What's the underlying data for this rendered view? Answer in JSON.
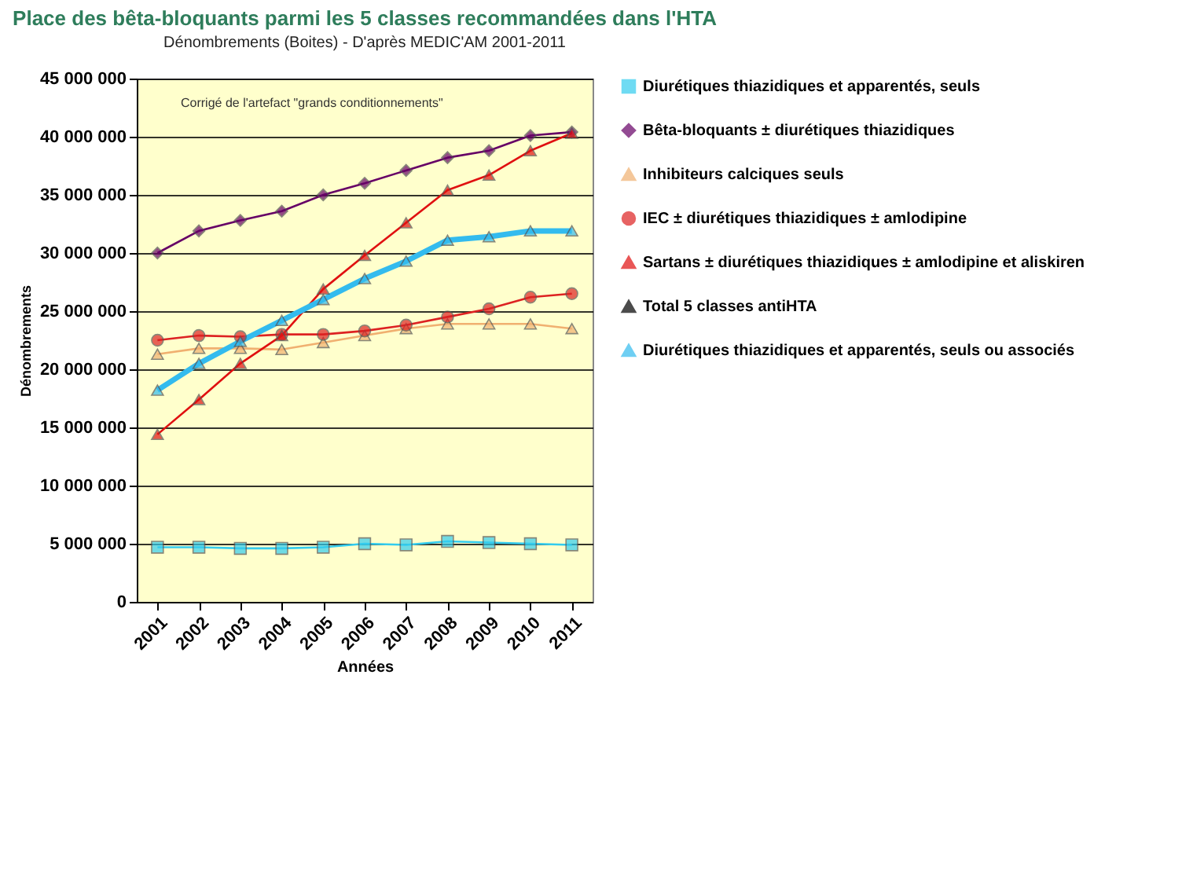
{
  "chart_data": {
    "type": "line",
    "title": "Place des bêta-bloquants parmi les 5 classes recommandées dans l'HTA",
    "subtitle": "Dénombrements (Boites) - D'après MEDIC'AM 2001-2011",
    "xlabel": "Années",
    "ylabel": "Dénombrements",
    "annotations": [
      "Corrigé de l'artefact \"grands conditionnements\""
    ],
    "categories": [
      "2001",
      "2002",
      "2003",
      "2004",
      "2005",
      "2006",
      "2007",
      "2008",
      "2009",
      "2010",
      "2011"
    ],
    "series": [
      {
        "name": "Diurétiques thiazidiques et apparentés, seuls",
        "color": "#33ccee",
        "marker": "square",
        "values": [
          4700000,
          4700000,
          4600000,
          4600000,
          4700000,
          5000000,
          4900000,
          5200000,
          5100000,
          5000000,
          4900000
        ]
      },
      {
        "name": "Bêta-bloquants ± diurétiques thiazidiques",
        "color": "#660066",
        "marker": "diamond",
        "values": [
          30000000,
          31900000,
          32800000,
          33600000,
          35000000,
          36000000,
          37100000,
          38200000,
          38800000,
          40100000,
          40400000
        ]
      },
      {
        "name": "Inhibiteurs calciques seuls",
        "color": "#f0b070",
        "marker": "triangle",
        "values": [
          21300000,
          21800000,
          21800000,
          21700000,
          22300000,
          22900000,
          23500000,
          23900000,
          23900000,
          23900000,
          23500000
        ]
      },
      {
        "name": "IEC ± diurétiques thiazidiques ± amlodipine",
        "color": "#dd2222",
        "marker": "circle",
        "values": [
          22500000,
          22900000,
          22800000,
          23000000,
          23000000,
          23300000,
          23800000,
          24500000,
          25200000,
          26200000,
          26500000
        ]
      },
      {
        "name": "Sartans ± diurétiques thiazidiques ± amlodipine et aliskiren",
        "color": "#e01010",
        "marker": "triangle",
        "values": [
          14400000,
          17400000,
          20500000,
          22900000,
          26900000,
          29800000,
          32600000,
          35400000,
          36700000,
          38800000,
          40300000
        ]
      },
      {
        "name": "Total 5 classes antiHTA",
        "color": "#000000",
        "marker": "triangle",
        "values": [
          null,
          null,
          null,
          null,
          null,
          null,
          null,
          null,
          null,
          null,
          null
        ]
      },
      {
        "name": "Diurétiques thiazidiques et apparentés, seuls ou associés",
        "color": "#33bbee",
        "marker": "triangle",
        "values": [
          18200000,
          20500000,
          22400000,
          24200000,
          26000000,
          27800000,
          29300000,
          31100000,
          31400000,
          31900000,
          31900000
        ]
      }
    ],
    "ylim": [
      0,
      45000000
    ],
    "yticks": [
      0,
      {
        "value": 5000000,
        "label": "5 000 000"
      },
      {
        "value": 10000000,
        "label": "10 000 000"
      },
      {
        "value": 15000000,
        "label": "15 000 000"
      },
      {
        "value": 20000000,
        "label": "20 000 000"
      },
      {
        "value": 25000000,
        "label": "25 000 000"
      },
      {
        "value": 30000000,
        "label": "30 000 000"
      },
      {
        "value": 35000000,
        "label": "35 000 000"
      },
      {
        "value": 40000000,
        "label": "40 000 000"
      },
      {
        "value": 45000000,
        "label": "45 000 000"
      }
    ],
    "grid": "y",
    "legend": "right",
    "line_style": "solid"
  }
}
